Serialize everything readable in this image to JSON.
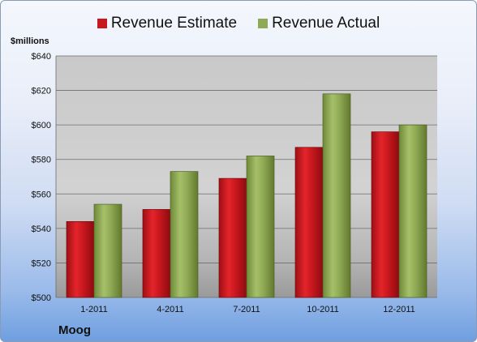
{
  "chart_data": {
    "type": "bar",
    "title": "",
    "unit_label": "$millions",
    "company": "Moog",
    "categories": [
      "1-2011",
      "4-2011",
      "7-2011",
      "10-2011",
      "12-2011"
    ],
    "series": [
      {
        "name": "Revenue Estimate",
        "color": "#c8181e",
        "values": [
          544,
          551,
          569,
          587,
          596
        ]
      },
      {
        "name": "Revenue Actual",
        "color": "#8faa55",
        "values": [
          554,
          573,
          582,
          618,
          600
        ]
      }
    ],
    "ylim": [
      500,
      640
    ],
    "yticks": [
      500,
      520,
      540,
      560,
      580,
      600,
      620,
      640
    ],
    "ytick_prefix": "$",
    "grid": true,
    "legend_placement": "top"
  }
}
